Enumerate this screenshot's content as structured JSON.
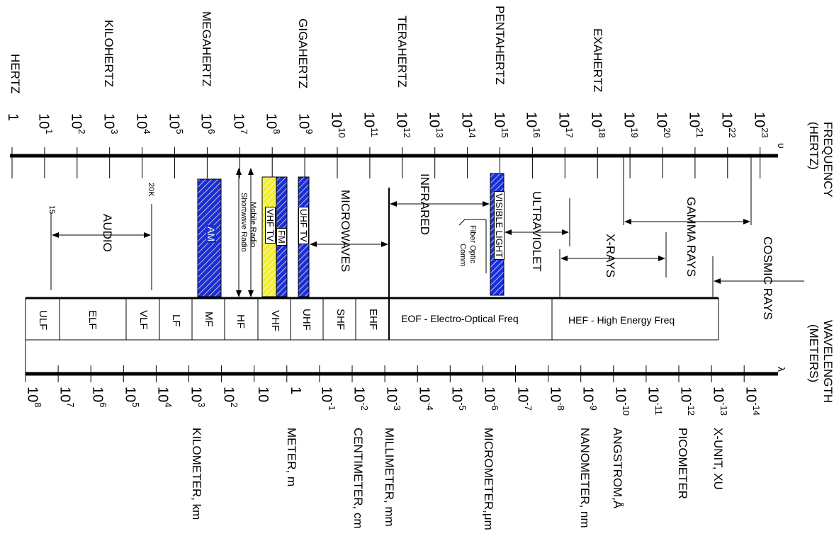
{
  "frequency_axis": {
    "title": "FREQUENCY",
    "unit": "(HERTZ)",
    "symbol": "υ",
    "ticks": [
      {
        "base": "1",
        "exp": ""
      },
      {
        "base": "10",
        "exp": "1"
      },
      {
        "base": "10",
        "exp": "2"
      },
      {
        "base": "10",
        "exp": "3"
      },
      {
        "base": "10",
        "exp": "4"
      },
      {
        "base": "10",
        "exp": "5"
      },
      {
        "base": "10",
        "exp": "6"
      },
      {
        "base": "10",
        "exp": "7"
      },
      {
        "base": "10",
        "exp": "8"
      },
      {
        "base": "10",
        "exp": "9"
      },
      {
        "base": "10",
        "exp": "10"
      },
      {
        "base": "10",
        "exp": "11"
      },
      {
        "base": "10",
        "exp": "12"
      },
      {
        "base": "10",
        "exp": "13"
      },
      {
        "base": "10",
        "exp": "14"
      },
      {
        "base": "10",
        "exp": "15"
      },
      {
        "base": "10",
        "exp": "16"
      },
      {
        "base": "10",
        "exp": "17"
      },
      {
        "base": "10",
        "exp": "18"
      },
      {
        "base": "10",
        "exp": "19"
      },
      {
        "base": "10",
        "exp": "20"
      },
      {
        "base": "10",
        "exp": "21"
      },
      {
        "base": "10",
        "exp": "22"
      },
      {
        "base": "10",
        "exp": "23"
      }
    ],
    "unit_names": [
      "HERTZ",
      "KILOHERTZ",
      "MEGAHERTZ",
      "GIGAHERTZ",
      "TERAHERTZ",
      "PENTAHERTZ",
      "EXAHERTZ"
    ]
  },
  "wavelength_axis": {
    "title": "WAVELENGTH",
    "unit": "(METERS)",
    "symbol": "λ",
    "ticks": [
      {
        "base": "10",
        "exp": "8"
      },
      {
        "base": "10",
        "exp": "7"
      },
      {
        "base": "10",
        "exp": "6"
      },
      {
        "base": "10",
        "exp": "5"
      },
      {
        "base": "10",
        "exp": "4"
      },
      {
        "base": "10",
        "exp": "3"
      },
      {
        "base": "10",
        "exp": "2"
      },
      {
        "base": "10",
        "exp": ""
      },
      {
        "base": "1",
        "exp": ""
      },
      {
        "base": "10",
        "exp": "-1"
      },
      {
        "base": "10",
        "exp": "-2"
      },
      {
        "base": "10",
        "exp": "-3"
      },
      {
        "base": "10",
        "exp": "-4"
      },
      {
        "base": "10",
        "exp": "-5"
      },
      {
        "base": "10",
        "exp": "-6"
      },
      {
        "base": "10",
        "exp": "-7"
      },
      {
        "base": "10",
        "exp": "-8"
      },
      {
        "base": "10",
        "exp": "-9"
      },
      {
        "base": "10",
        "exp": "-10"
      },
      {
        "base": "10",
        "exp": "-11"
      },
      {
        "base": "10",
        "exp": "-12"
      },
      {
        "base": "10",
        "exp": "-13"
      },
      {
        "base": "10",
        "exp": "-14"
      }
    ],
    "unit_names": [
      "KILOMETER, km",
      "METER, m",
      "CENTIMETER, cm",
      "MILLIMETER, mm",
      "MICROMETER,μm",
      "NANOMETER, nm",
      "ANGSTROM,Å",
      "PICOMETER",
      "X-UNIT, XU"
    ]
  },
  "bands": [
    "ULF",
    "ELF",
    "VLF",
    "LF",
    "MF",
    "HF",
    "VHF",
    "UHF",
    "SHF",
    "EHF",
    "EOF - Electro-Optical Freq",
    "HEF - High Energy Freq"
  ],
  "regions": {
    "audio": "AUDIO",
    "audio_low": "15",
    "audio_high": "20K",
    "am": "AM",
    "mobile_radio": "Mobile Radio",
    "shortwave_radio": "Shortwave Radio",
    "vhf_tv": "VHF TV",
    "fm": "FM",
    "uhf_tv": "UHF TV",
    "microwaves": "MICROWAVES",
    "infrared": "INFRARED",
    "fiber_optic_1": "Fiber Optic",
    "fiber_optic_2": "Comm",
    "visible_light": "VISIBLE LIGHT",
    "ultraviolet": "ULTRAVIOLET",
    "x_rays": "X-RAYS",
    "gamma_rays": "GAMMA RAYS",
    "cosmic_rays": "COSMIC RAYS"
  },
  "colors": {
    "blue": "#1a2fd6",
    "yellow": "#f4ef2a",
    "line": "#000000"
  }
}
